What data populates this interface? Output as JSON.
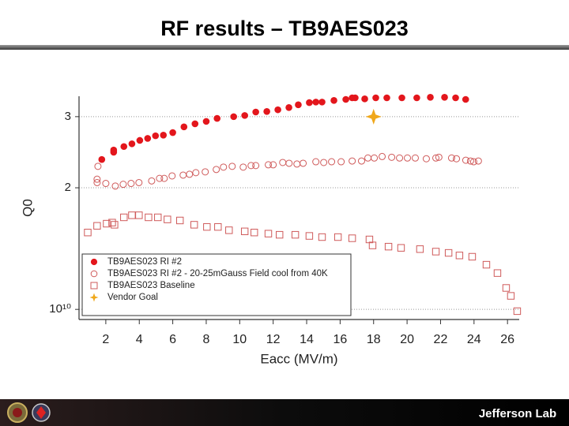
{
  "title": "RF results – TB9AES023",
  "chart_data": {
    "type": "scatter",
    "xlabel": "Eacc (MV/m)",
    "ylabel": "Q0",
    "xlim": [
      0.4,
      26.7
    ],
    "xticks": [
      2,
      4,
      6,
      8,
      10,
      12,
      14,
      16,
      18,
      20,
      22,
      24,
      26
    ],
    "ylim": [
      0.944,
      3.37
    ],
    "yticks": [
      {
        "value": 1,
        "label": "10¹⁰"
      },
      2,
      3
    ],
    "log_y": true,
    "grid": true,
    "legend": "lower left",
    "series": [
      {
        "name": "TB9AES023 RI #2",
        "color": "#e3161c",
        "marker": "circle-filled",
        "x": [
          1.76,
          2.47,
          2.47,
          3.08,
          3.56,
          4.03,
          4.5,
          4.97,
          5.44,
          6.0,
          6.67,
          7.33,
          8.0,
          8.65,
          9.64,
          10.3,
          10.96,
          11.62,
          12.28,
          12.94,
          13.5,
          14.16,
          14.55,
          14.92,
          15.63,
          16.34,
          16.72,
          16.9,
          17.47,
          18.13,
          18.79,
          19.69,
          20.58,
          21.39,
          22.24,
          22.9,
          23.5
        ],
        "values": [
          2.35,
          2.45,
          2.48,
          2.53,
          2.57,
          2.62,
          2.65,
          2.69,
          2.7,
          2.74,
          2.83,
          2.88,
          2.92,
          2.97,
          3.0,
          3.02,
          3.08,
          3.09,
          3.12,
          3.16,
          3.21,
          3.25,
          3.26,
          3.26,
          3.29,
          3.31,
          3.34,
          3.34,
          3.32,
          3.34,
          3.34,
          3.34,
          3.34,
          3.35,
          3.35,
          3.34,
          3.31
        ]
      },
      {
        "name": "TB9AES023 RI #2 - 20-25mGauss Field cool from 40K",
        "color": "#cf5a5a",
        "marker": "circle-open",
        "x": [
          1.53,
          1.48,
          1.48,
          2.0,
          2.57,
          3.04,
          3.51,
          3.98,
          4.74,
          5.21,
          5.49,
          5.96,
          6.62,
          7.0,
          7.38,
          7.94,
          8.6,
          9.03,
          9.55,
          10.21,
          10.68,
          10.96,
          11.71,
          12.0,
          12.57,
          12.95,
          13.42,
          13.79,
          14.55,
          15.02,
          15.49,
          16.06,
          16.72,
          17.28,
          17.66,
          18.04,
          18.51,
          19.08,
          19.55,
          20.02,
          20.49,
          21.15,
          21.72,
          21.9,
          22.66,
          22.95,
          23.51,
          23.79,
          23.98,
          24.26
        ],
        "values": [
          2.26,
          2.1,
          2.06,
          2.05,
          2.02,
          2.04,
          2.05,
          2.06,
          2.08,
          2.11,
          2.11,
          2.14,
          2.15,
          2.16,
          2.18,
          2.19,
          2.22,
          2.25,
          2.26,
          2.25,
          2.27,
          2.27,
          2.28,
          2.28,
          2.31,
          2.3,
          2.29,
          2.3,
          2.32,
          2.31,
          2.32,
          2.32,
          2.33,
          2.33,
          2.37,
          2.37,
          2.39,
          2.38,
          2.37,
          2.37,
          2.37,
          2.36,
          2.37,
          2.38,
          2.37,
          2.36,
          2.34,
          2.33,
          2.32,
          2.33
        ]
      },
      {
        "name": "TB9AES023 Baseline",
        "color": "#cf5a5a",
        "marker": "square-open",
        "x": [
          0.92,
          1.48,
          2.05,
          2.38,
          2.52,
          3.08,
          3.56,
          3.98,
          4.55,
          5.11,
          5.68,
          6.43,
          7.28,
          8.04,
          8.7,
          9.36,
          10.3,
          10.87,
          11.71,
          12.38,
          13.32,
          14.16,
          14.92,
          15.87,
          16.72,
          17.75,
          17.94,
          18.89,
          19.64,
          20.77,
          21.72,
          22.48,
          23.13,
          23.89,
          24.74,
          25.4,
          25.92,
          26.2,
          26.58
        ],
        "values": [
          1.55,
          1.61,
          1.63,
          1.64,
          1.62,
          1.69,
          1.71,
          1.71,
          1.69,
          1.69,
          1.67,
          1.66,
          1.62,
          1.6,
          1.6,
          1.57,
          1.56,
          1.55,
          1.54,
          1.53,
          1.53,
          1.52,
          1.51,
          1.51,
          1.5,
          1.49,
          1.44,
          1.43,
          1.42,
          1.41,
          1.39,
          1.38,
          1.36,
          1.35,
          1.29,
          1.23,
          1.13,
          1.08,
          0.99
        ]
      },
      {
        "name": "Vendor Goal",
        "color": "#f0a81c",
        "marker": "star",
        "x": [
          18
        ],
        "values": [
          3
        ]
      }
    ]
  },
  "footer": {
    "brand": "Jefferson Lab"
  }
}
